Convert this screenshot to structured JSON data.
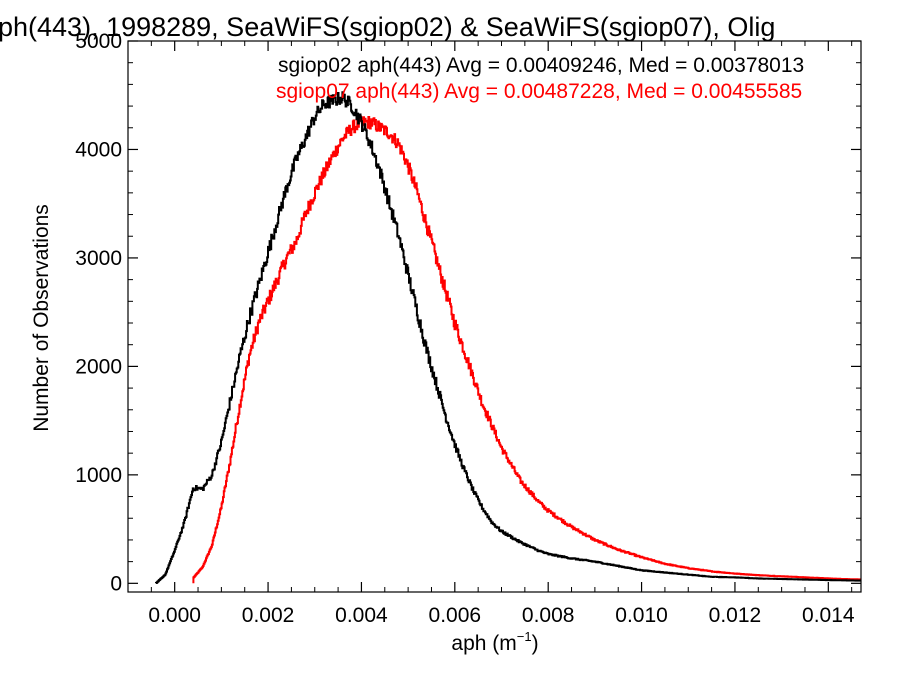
{
  "chart_data": {
    "type": "histogram",
    "title": "ph(443), 1998289, SeaWiFS(sgiop02) & SeaWiFS(sgiop07), Olig",
    "xlabel_main": "aph (m",
    "xlabel_sup": "−1",
    "xlabel_close": ")",
    "ylabel": "Number of Observations",
    "xlim": [
      -0.001,
      0.0147
    ],
    "ylim": [
      -80,
      5000
    ],
    "xticks": [
      {
        "value": 0.0,
        "label": "0.000"
      },
      {
        "value": 0.002,
        "label": "0.002"
      },
      {
        "value": 0.004,
        "label": "0.004"
      },
      {
        "value": 0.006,
        "label": "0.006"
      },
      {
        "value": 0.008,
        "label": "0.008"
      },
      {
        "value": 0.01,
        "label": "0.010"
      },
      {
        "value": 0.012,
        "label": "0.012"
      },
      {
        "value": 0.014,
        "label": "0.014"
      }
    ],
    "yticks": [
      {
        "value": 0,
        "label": "0"
      },
      {
        "value": 1000,
        "label": "1000"
      },
      {
        "value": 2000,
        "label": "2000"
      },
      {
        "value": 3000,
        "label": "3000"
      },
      {
        "value": 4000,
        "label": "4000"
      },
      {
        "value": 5000,
        "label": "5000"
      }
    ],
    "annotations": [
      {
        "text": "sgiop02 aph(443) Avg = 0.00409246, Med = 0.00378013",
        "color": "#000000"
      },
      {
        "text": "sgiop07 aph(443) Avg = 0.00487228, Med = 0.00455585",
        "color": "#ff0000"
      }
    ],
    "series": [
      {
        "color": "#000000",
        "x": [
          -0.0004,
          -0.0002,
          0.0,
          0.0002,
          0.0004,
          0.0006,
          0.0008,
          0.001,
          0.0012,
          0.0014,
          0.0016,
          0.0018,
          0.002,
          0.0022,
          0.0024,
          0.0026,
          0.0028,
          0.003,
          0.0032,
          0.0034,
          0.0036,
          0.0038,
          0.004,
          0.0042,
          0.0044,
          0.0046,
          0.0048,
          0.005,
          0.0052,
          0.0054,
          0.0056,
          0.0058,
          0.006,
          0.0062,
          0.0064,
          0.0066,
          0.0068,
          0.007,
          0.0072,
          0.0074,
          0.0076,
          0.0078,
          0.008,
          0.0085,
          0.009,
          0.0095,
          0.01,
          0.0105,
          0.011,
          0.0115,
          0.012,
          0.0125,
          0.013,
          0.0135,
          0.014,
          0.0147
        ],
        "y": [
          0,
          80,
          300,
          550,
          880,
          870,
          1000,
          1300,
          1700,
          2100,
          2450,
          2750,
          3050,
          3350,
          3650,
          3900,
          4100,
          4300,
          4420,
          4450,
          4480,
          4400,
          4250,
          4050,
          3800,
          3500,
          3200,
          2850,
          2500,
          2150,
          1850,
          1550,
          1280,
          1050,
          850,
          690,
          560,
          480,
          430,
          380,
          340,
          300,
          270,
          230,
          200,
          160,
          120,
          100,
          80,
          60,
          55,
          45,
          40,
          35,
          30,
          25
        ]
      },
      {
        "color": "#ff0000",
        "x": [
          0.0004,
          0.0006,
          0.0008,
          0.001,
          0.0012,
          0.0014,
          0.0016,
          0.0018,
          0.002,
          0.0022,
          0.0024,
          0.0026,
          0.0028,
          0.003,
          0.0032,
          0.0034,
          0.0036,
          0.0038,
          0.004,
          0.0042,
          0.0044,
          0.0046,
          0.0048,
          0.005,
          0.0052,
          0.0054,
          0.0056,
          0.0058,
          0.006,
          0.0062,
          0.0064,
          0.0066,
          0.0068,
          0.007,
          0.0072,
          0.0074,
          0.0076,
          0.0078,
          0.008,
          0.0085,
          0.009,
          0.0095,
          0.01,
          0.0105,
          0.011,
          0.0115,
          0.012,
          0.0125,
          0.013,
          0.0135,
          0.014,
          0.0147
        ],
        "y": [
          50,
          150,
          350,
          700,
          1150,
          1650,
          2100,
          2400,
          2600,
          2800,
          3000,
          3150,
          3400,
          3600,
          3780,
          3950,
          4100,
          4200,
          4250,
          4250,
          4200,
          4150,
          4050,
          3850,
          3600,
          3300,
          3000,
          2700,
          2400,
          2150,
          1900,
          1650,
          1450,
          1250,
          1100,
          950,
          850,
          750,
          670,
          520,
          400,
          310,
          240,
          180,
          140,
          110,
          90,
          75,
          65,
          55,
          45,
          35
        ]
      }
    ]
  }
}
